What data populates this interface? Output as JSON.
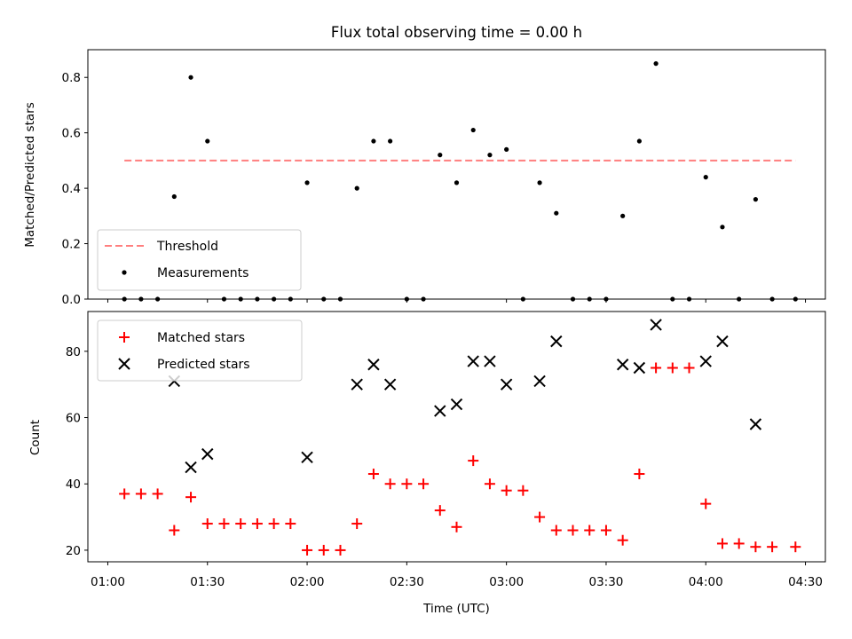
{
  "chart_data": {
    "title": "Flux total observing time = 0.00 h",
    "xlabel": "Time (UTC)",
    "xlim": [
      "00:54",
      "04:36"
    ],
    "xticks": [
      "01:00",
      "01:30",
      "02:00",
      "02:30",
      "03:00",
      "03:30",
      "04:00",
      "04:30"
    ],
    "x": [
      "01:05",
      "01:10",
      "01:15",
      "01:20",
      "01:25",
      "01:30",
      "01:35",
      "01:40",
      "01:45",
      "01:50",
      "01:55",
      "02:00",
      "02:05",
      "02:10",
      "02:15",
      "02:20",
      "02:25",
      "02:30",
      "02:35",
      "02:40",
      "02:45",
      "02:50",
      "02:55",
      "03:00",
      "03:05",
      "03:10",
      "03:15",
      "03:20",
      "03:25",
      "03:30",
      "03:35",
      "03:40",
      "03:45",
      "03:50",
      "03:55",
      "04:00",
      "04:05",
      "04:10",
      "04:15",
      "04:20",
      "04:27"
    ],
    "panels": [
      {
        "type": "scatter",
        "ylabel": "Matched/Predicted stars",
        "ylim": [
          0,
          0.9
        ],
        "yticks": [
          "0.0",
          "0.2",
          "0.4",
          "0.6",
          "0.8"
        ],
        "threshold": 0.5,
        "legend": {
          "loc": "lower-left",
          "entries": [
            "Threshold",
            "Measurements"
          ]
        },
        "series": [
          {
            "name": "Threshold",
            "kind": "hline",
            "color": "#ff7f7f",
            "value": 0.5,
            "x_range": [
              "01:05",
              "04:27"
            ]
          },
          {
            "name": "Measurements",
            "kind": "dot",
            "color": "#000000",
            "values": [
              0,
              0,
              0,
              0.37,
              0.8,
              0.57,
              0,
              0,
              0,
              0,
              0,
              0.42,
              0,
              0,
              0.4,
              0.57,
              0.57,
              0,
              0,
              0.52,
              0.42,
              0.61,
              0.52,
              0.54,
              0,
              0.42,
              0.31,
              0,
              0,
              0,
              0.3,
              0.57,
              0.85,
              0,
              0,
              0.44,
              0.26,
              0,
              0.36,
              0,
              0
            ]
          }
        ]
      },
      {
        "type": "scatter",
        "ylabel": "Count",
        "ylim": [
          16.5,
          92
        ],
        "yticks": [
          "20",
          "40",
          "60",
          "80"
        ],
        "legend": {
          "loc": "upper-left",
          "entries": [
            "Matched stars",
            "Predicted stars"
          ]
        },
        "series": [
          {
            "name": "Matched stars",
            "kind": "plus",
            "color": "#ff0000",
            "values": [
              37,
              37,
              37,
              26,
              36,
              28,
              28,
              28,
              28,
              28,
              28,
              20,
              20,
              20,
              28,
              43,
              40,
              40,
              40,
              32,
              27,
              47,
              40,
              38,
              38,
              30,
              26,
              26,
              26,
              26,
              23,
              43,
              75,
              75,
              75,
              34,
              22,
              22,
              21,
              21,
              21
            ]
          },
          {
            "name": "Predicted stars",
            "kind": "cross",
            "color": "#000000",
            "values": [
              null,
              null,
              null,
              71,
              45,
              49,
              null,
              null,
              null,
              null,
              null,
              48,
              null,
              null,
              70,
              76,
              70,
              null,
              null,
              62,
              64,
              77,
              77,
              70,
              null,
              71,
              83,
              null,
              null,
              null,
              76,
              75,
              88,
              null,
              null,
              77,
              83,
              null,
              58,
              null,
              null
            ]
          }
        ]
      }
    ]
  }
}
